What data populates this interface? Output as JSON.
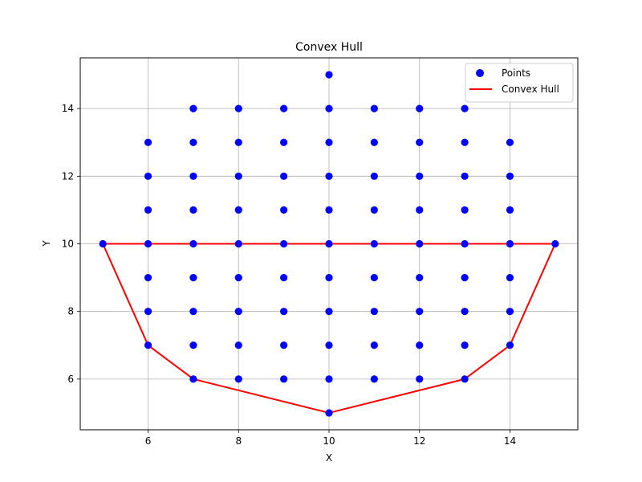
{
  "chart_data": {
    "type": "scatter",
    "title": "Convex Hull",
    "xlabel": "X",
    "ylabel": "Y",
    "xlim": [
      4.5,
      15.5
    ],
    "ylim": [
      4.5,
      15.5
    ],
    "xticks": [
      6,
      8,
      10,
      12,
      14
    ],
    "yticks": [
      6,
      8,
      10,
      12,
      14
    ],
    "grid": true,
    "legend_position": "top-right",
    "series": [
      {
        "name": "Points",
        "kind": "markers",
        "color": "#0000ff",
        "points": [
          [
            10,
            15
          ],
          [
            7,
            14
          ],
          [
            8,
            14
          ],
          [
            9,
            14
          ],
          [
            10,
            14
          ],
          [
            11,
            14
          ],
          [
            12,
            14
          ],
          [
            13,
            14
          ],
          [
            6,
            13
          ],
          [
            7,
            13
          ],
          [
            8,
            13
          ],
          [
            9,
            13
          ],
          [
            10,
            13
          ],
          [
            11,
            13
          ],
          [
            12,
            13
          ],
          [
            13,
            13
          ],
          [
            14,
            13
          ],
          [
            6,
            12
          ],
          [
            7,
            12
          ],
          [
            8,
            12
          ],
          [
            9,
            12
          ],
          [
            10,
            12
          ],
          [
            11,
            12
          ],
          [
            12,
            12
          ],
          [
            13,
            12
          ],
          [
            14,
            12
          ],
          [
            6,
            11
          ],
          [
            7,
            11
          ],
          [
            8,
            11
          ],
          [
            9,
            11
          ],
          [
            10,
            11
          ],
          [
            11,
            11
          ],
          [
            12,
            11
          ],
          [
            13,
            11
          ],
          [
            14,
            11
          ],
          [
            5,
            10
          ],
          [
            6,
            10
          ],
          [
            7,
            10
          ],
          [
            8,
            10
          ],
          [
            9,
            10
          ],
          [
            10,
            10
          ],
          [
            11,
            10
          ],
          [
            12,
            10
          ],
          [
            13,
            10
          ],
          [
            14,
            10
          ],
          [
            15,
            10
          ],
          [
            6,
            9
          ],
          [
            7,
            9
          ],
          [
            8,
            9
          ],
          [
            9,
            9
          ],
          [
            10,
            9
          ],
          [
            11,
            9
          ],
          [
            12,
            9
          ],
          [
            13,
            9
          ],
          [
            14,
            9
          ],
          [
            6,
            8
          ],
          [
            7,
            8
          ],
          [
            8,
            8
          ],
          [
            9,
            8
          ],
          [
            10,
            8
          ],
          [
            11,
            8
          ],
          [
            12,
            8
          ],
          [
            13,
            8
          ],
          [
            14,
            8
          ],
          [
            6,
            7
          ],
          [
            7,
            7
          ],
          [
            8,
            7
          ],
          [
            9,
            7
          ],
          [
            10,
            7
          ],
          [
            11,
            7
          ],
          [
            12,
            7
          ],
          [
            13,
            7
          ],
          [
            14,
            7
          ],
          [
            7,
            6
          ],
          [
            8,
            6
          ],
          [
            9,
            6
          ],
          [
            10,
            6
          ],
          [
            11,
            6
          ],
          [
            12,
            6
          ],
          [
            13,
            6
          ],
          [
            10,
            5
          ]
        ]
      },
      {
        "name": "Convex Hull",
        "kind": "line",
        "color": "#ff0000",
        "points": [
          [
            5,
            10
          ],
          [
            6,
            7
          ],
          [
            7,
            6
          ],
          [
            10,
            5
          ],
          [
            13,
            6
          ],
          [
            14,
            7
          ],
          [
            15,
            10
          ],
          [
            5,
            10
          ]
        ]
      }
    ]
  }
}
